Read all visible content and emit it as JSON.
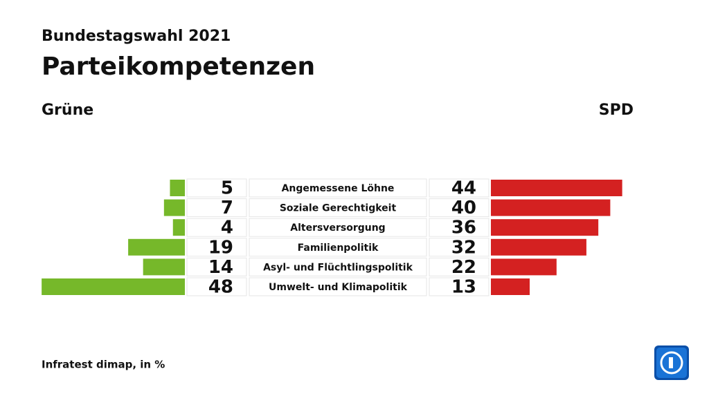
{
  "chart_data": {
    "type": "bar",
    "layout": "butterfly",
    "supertitle": "Bundestagswahl 2021",
    "title": "Parteikompetenzen",
    "source": "Infratest dimap, in %",
    "categories": [
      "Angemessene Löhne",
      "Soziale Gerechtigkeit",
      "Altersversorgung",
      "Familienpolitik",
      "Asyl- und Flüchtlingspolitik",
      "Umwelt- und Klimapolitik"
    ],
    "series": [
      {
        "name": "Grüne",
        "color": "#76b82a",
        "values": [
          5,
          7,
          4,
          19,
          14,
          48
        ]
      },
      {
        "name": "SPD",
        "color": "#d42121",
        "values": [
          44,
          40,
          36,
          32,
          22,
          13
        ]
      }
    ]
  }
}
